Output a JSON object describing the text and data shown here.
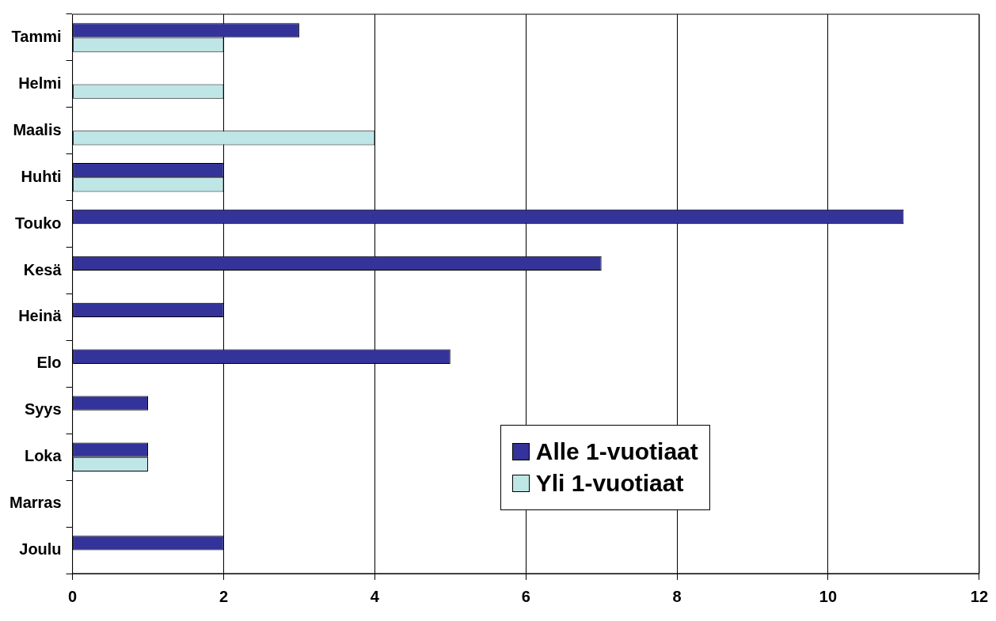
{
  "chart_data": {
    "type": "bar",
    "orientation": "horizontal",
    "categories": [
      "Tammi",
      "Helmi",
      "Maalis",
      "Huhti",
      "Touko",
      "Kesä",
      "Heinä",
      "Elo",
      "Syys",
      "Loka",
      "Marras",
      "Joulu"
    ],
    "series": [
      {
        "name": "Alle 1-vuotiaat",
        "color": "#333399",
        "values": [
          3,
          0,
          0,
          2,
          11,
          7,
          2,
          5,
          1,
          1,
          0,
          2
        ]
      },
      {
        "name": "Yli 1-vuotiaat",
        "color": "#bfe6e6",
        "values": [
          2,
          2,
          4,
          2,
          0,
          0,
          0,
          0,
          0,
          1,
          0,
          0
        ]
      }
    ],
    "xlim": [
      0,
      12
    ],
    "xticks": [
      0,
      2,
      4,
      6,
      8,
      10,
      12
    ],
    "grid": "x",
    "legend": "bottom"
  }
}
